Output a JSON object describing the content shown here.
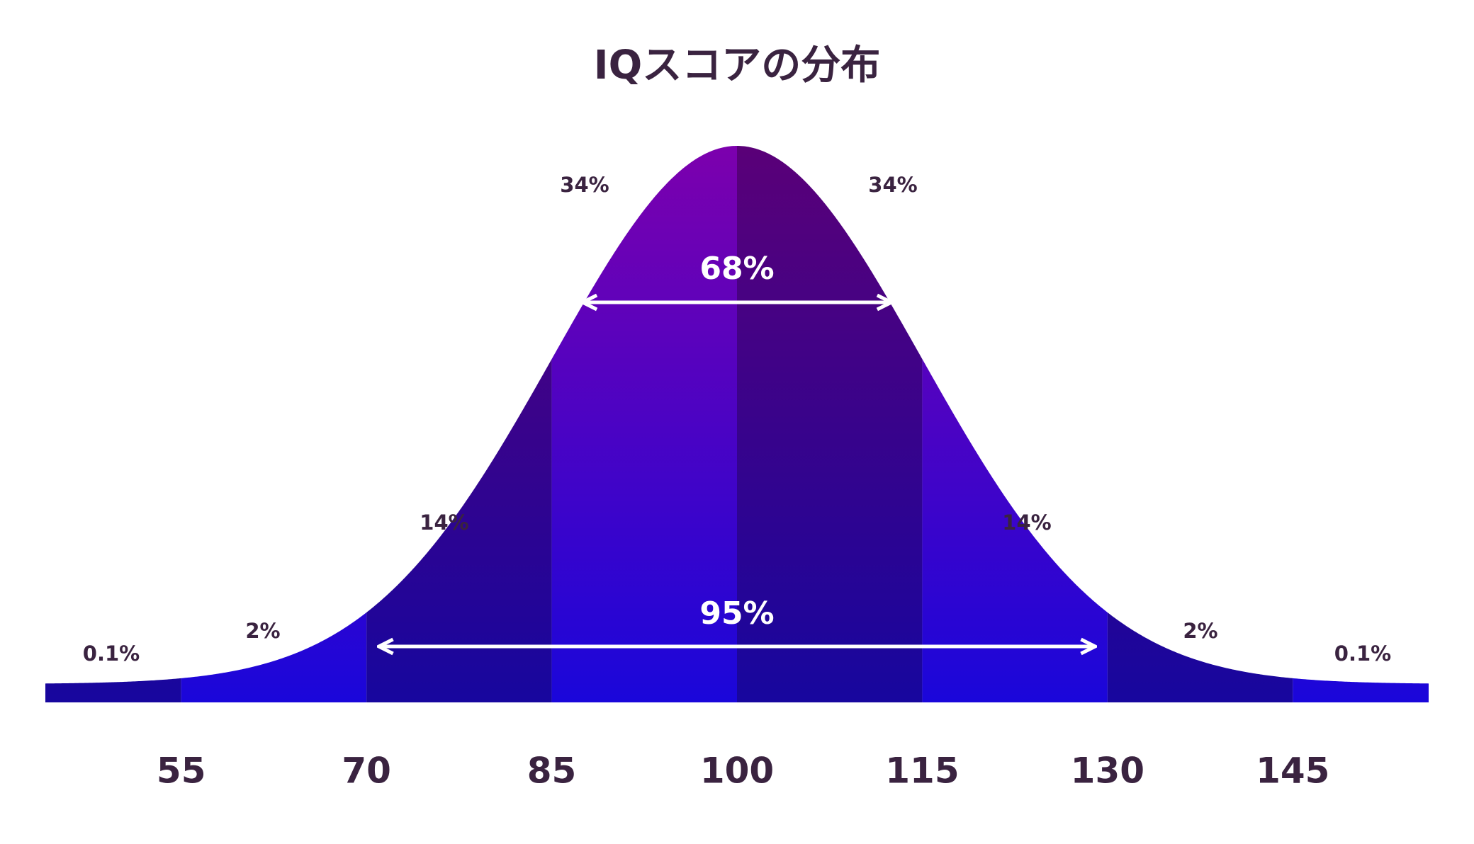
{
  "chart_data": {
    "type": "bell",
    "title": "IQスコアの分布",
    "xlim": [
      44,
      156
    ],
    "xticks": [
      55,
      70,
      85,
      100,
      115,
      130,
      145
    ],
    "segments": {
      "edges": [
        44,
        55,
        70,
        85,
        100,
        115,
        130,
        145,
        156
      ],
      "values": [
        0.1,
        2,
        14,
        34,
        34,
        14,
        2,
        0.1
      ],
      "value_labels": [
        "0.1%",
        "2%",
        "14%",
        "34%",
        "34%",
        "14%",
        "2%",
        "0.1%"
      ]
    },
    "ranges": {
      "from": [
        87.5,
        71
      ],
      "to": [
        112.5,
        129
      ],
      "values": [
        68,
        95
      ],
      "value_labels": [
        "68%",
        "95%"
      ]
    }
  }
}
